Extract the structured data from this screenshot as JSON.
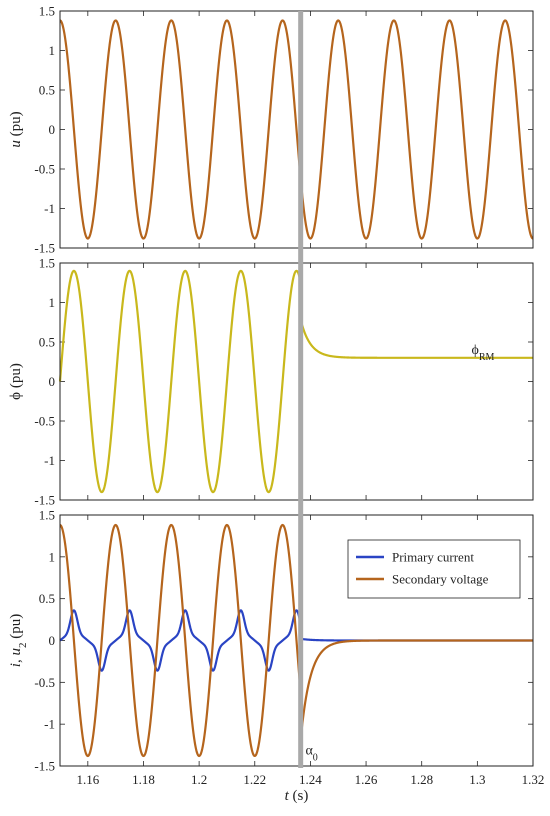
{
  "chart_data": [
    {
      "type": "line",
      "ylabel": "u (pu)",
      "ylabel_parts": [
        {
          "t": "u",
          "i": true
        },
        {
          "t": " (pu)",
          "i": false
        }
      ],
      "xlim": [
        1.15,
        1.32
      ],
      "ylim": [
        -1.5,
        1.5
      ],
      "y_ticks": [
        "1.5",
        "1",
        "0.5",
        "0",
        "-0.5",
        "-1",
        "-1.5"
      ],
      "series": [
        {
          "color": "#b5651d",
          "amplitude": 1.38,
          "frequency_hz": 50,
          "phase_deg": 90,
          "t_start": 1.15,
          "t_end": 1.32
        }
      ]
    },
    {
      "type": "line",
      "ylabel": "ϕ (pu)",
      "ylabel_parts": [
        {
          "t": "ϕ",
          "i": false
        },
        {
          "t": " (pu)",
          "i": false
        }
      ],
      "xlim": [
        1.15,
        1.32
      ],
      "ylim": [
        -1.5,
        1.5
      ],
      "y_ticks": [
        "1.5",
        "1",
        "0.5",
        "0",
        "-0.5",
        "-1",
        "-1.5"
      ],
      "series": [
        {
          "color": "#c9b81c",
          "amplitude": 1.4,
          "frequency_hz": 50,
          "phase_deg": 0,
          "t_start": 1.15,
          "t_end": 1.2365,
          "decay_to": 0.3,
          "decay_start": 0.78
        }
      ],
      "annotation": {
        "text": "ϕ",
        "sub": "RM",
        "x": 1.302,
        "y": 0.32
      }
    },
    {
      "type": "line",
      "ylabel": "i, u2 (pu)",
      "ylabel_parts": [
        {
          "t": "i",
          "i": true
        },
        {
          "t": ", ",
          "i": false
        },
        {
          "t": "u",
          "i": true
        },
        {
          "t": "2",
          "sub": true
        },
        {
          "t": " (pu)",
          "i": false
        }
      ],
      "xlim": [
        1.15,
        1.32
      ],
      "ylim": [
        -1.5,
        1.5
      ],
      "y_ticks": [
        "1.5",
        "1",
        "0.5",
        "0",
        "-0.5",
        "-1",
        "-1.5"
      ],
      "x_ticks": [
        "1.16",
        "1.18",
        "1.2",
        "1.22",
        "1.24",
        "1.26",
        "1.28",
        "1.3",
        "1.32"
      ],
      "xlabel": "t (s)",
      "xlabel_parts": [
        {
          "t": "t",
          "i": true
        },
        {
          "t": " (s)",
          "i": false
        }
      ],
      "legend": [
        "Primary current",
        "Secondary voltage"
      ],
      "legend_position": "top-right",
      "series": [
        {
          "name": "Primary current",
          "color": "#2a44c4",
          "peak": 0.36,
          "frequency_hz": 50,
          "t_start": 1.15,
          "t_end": 1.2365
        },
        {
          "name": "Secondary voltage",
          "color": "#b5651d",
          "amplitude": 1.38,
          "frequency_hz": 50,
          "phase_deg": 90,
          "t_start": 1.15,
          "t_end": 1.2365,
          "switch_min": -1.18
        }
      ],
      "annotation": {
        "text": "α",
        "sub": "0",
        "x": 1.2375,
        "y": -1.22
      }
    }
  ],
  "switching_time": 1.2365,
  "colors": {
    "switch_line": "#a9a9a9",
    "axes": "#222222"
  }
}
